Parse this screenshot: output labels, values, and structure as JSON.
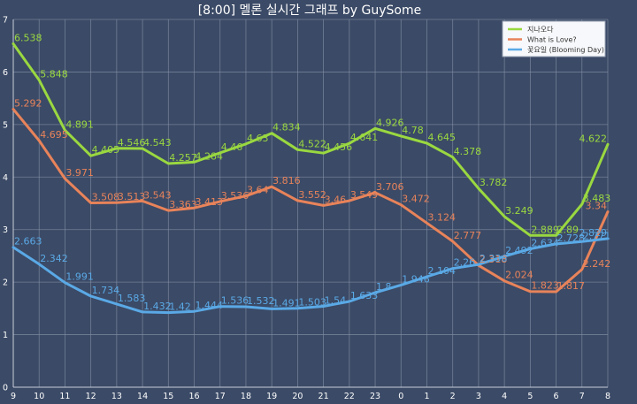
{
  "chart_data": {
    "type": "line",
    "title": "[8:00] 멜론 실시간 그래프 by GuySome",
    "categories": [
      "9",
      "10",
      "11",
      "12",
      "13",
      "14",
      "15",
      "16",
      "17",
      "18",
      "19",
      "20",
      "21",
      "22",
      "23",
      "0",
      "1",
      "2",
      "3",
      "4",
      "5",
      "6",
      "7",
      "8"
    ],
    "ylim": [
      0,
      7
    ],
    "yticks": [
      0,
      1,
      2,
      3,
      4,
      5,
      6,
      7
    ],
    "grid": true,
    "legend_position": "top-right",
    "series": [
      {
        "name": "지나오다",
        "color": "#9ad840",
        "values": [
          6.538,
          5.848,
          4.891,
          4.405,
          4.546,
          4.543,
          4.257,
          4.284,
          4.46,
          4.63,
          4.834,
          4.522,
          4.456,
          4.641,
          4.926,
          4.78,
          4.645,
          4.378,
          3.782,
          3.249,
          2.889,
          2.89,
          3.483,
          4.622
        ]
      },
      {
        "name": "What is Love?",
        "color": "#e8835a",
        "values": [
          5.292,
          4.695,
          3.971,
          3.508,
          3.513,
          3.543,
          3.363,
          3.413,
          3.536,
          3.64,
          3.816,
          3.552,
          3.46,
          3.549,
          3.706,
          3.472,
          3.124,
          2.777,
          2.318,
          2.024,
          1.823,
          1.817,
          2.242,
          3.34
        ]
      },
      {
        "name": "꽃요일 (Blooming Day)",
        "color": "#5aa9e6",
        "values": [
          2.663,
          2.342,
          1.991,
          1.734,
          1.583,
          1.432,
          1.42,
          1.444,
          1.536,
          1.532,
          1.491,
          1.503,
          1.54,
          1.633,
          1.8,
          1.946,
          2.104,
          2.26,
          2.336,
          2.492,
          2.634,
          2.728,
          2.771,
          2.829
        ]
      }
    ]
  }
}
